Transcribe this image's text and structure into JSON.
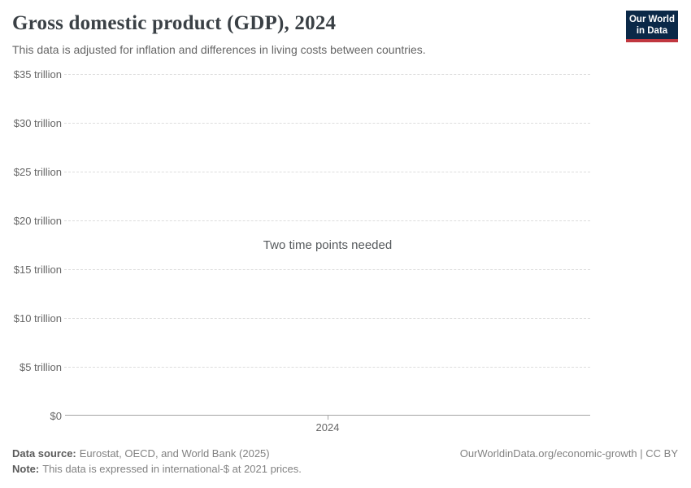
{
  "header": {
    "title": "Gross domestic product (GDP), 2024",
    "subtitle": "This data is adjusted for inflation and differences in living costs between countries.",
    "logo": {
      "line1": "Our World",
      "line2": "in Data",
      "bg_color": "#0b2948",
      "bar_color": "#c0373f"
    }
  },
  "chart_data": {
    "type": "line",
    "title": "Gross domestic product (GDP), 2024",
    "empty_state_message": "Two time points needed",
    "series": [],
    "x": [],
    "xlabel": "",
    "ylabel": "",
    "ylim": [
      0,
      35
    ],
    "y_unit": "trillion international-$",
    "grid": "horizontal-dashed",
    "legend": "none",
    "yticks": [
      {
        "value": 0,
        "label": "$0"
      },
      {
        "value": 5,
        "label": "$5 trillion"
      },
      {
        "value": 10,
        "label": "$10 trillion"
      },
      {
        "value": 15,
        "label": "$15 trillion"
      },
      {
        "value": 20,
        "label": "$20 trillion"
      },
      {
        "value": 25,
        "label": "$25 trillion"
      },
      {
        "value": 30,
        "label": "$30 trillion"
      },
      {
        "value": 35,
        "label": "$35 trillion"
      }
    ],
    "xticks": [
      {
        "value": 2024,
        "label": "2024"
      }
    ]
  },
  "footer": {
    "data_source_label": "Data source:",
    "data_source": "Eurostat, OECD, and World Bank (2025)",
    "note_label": "Note:",
    "note": "This data is expressed in international-$ at 2021 prices.",
    "link": "OurWorldinData.org/economic-growth | CC BY"
  },
  "colors": {
    "gridline": "#dddddd",
    "axis": "#a5a5a5",
    "tick_label": "#666666",
    "title": "#3a4045",
    "subtitle": "#666666",
    "footer_text": "#828282",
    "footer_label": "#5b5b5b",
    "empty_message": "#55595c",
    "background": "#ffffff"
  }
}
